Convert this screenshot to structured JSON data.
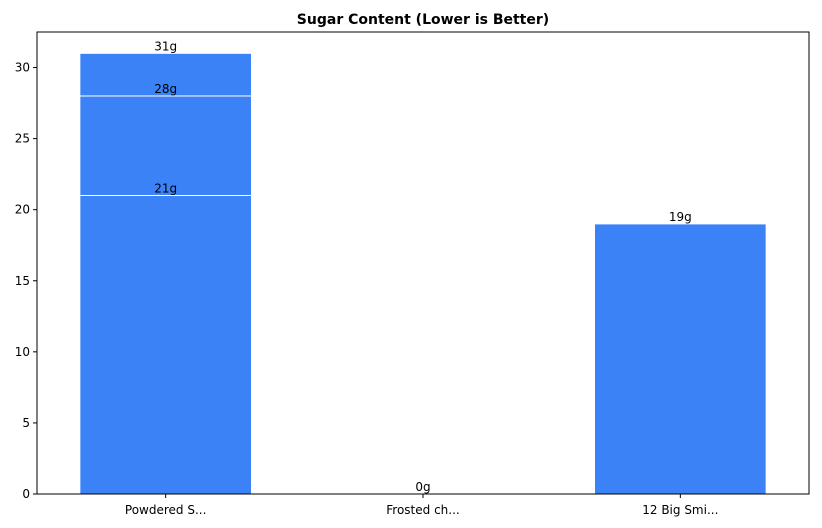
{
  "chart_data": {
    "type": "bar",
    "title": "Sugar Content (Lower is Better)",
    "xlabel": "",
    "ylabel": "",
    "categories": [
      "Powdered S...",
      "Frosted ch...",
      "12 Big Smi..."
    ],
    "stacked": true,
    "bars": [
      {
        "category": "Powdered S...",
        "segments": [
          {
            "value": 21,
            "label": "21g"
          },
          {
            "value": 7,
            "label": "28g"
          },
          {
            "value": 3,
            "label": "31g"
          }
        ]
      },
      {
        "category": "Frosted ch...",
        "segments": [
          {
            "value": 0,
            "label": "0g"
          }
        ]
      },
      {
        "category": "12 Big Smi...",
        "segments": [
          {
            "value": 19,
            "label": "19g"
          }
        ]
      }
    ],
    "ylim": [
      0,
      32.5
    ],
    "yticks": [
      0,
      5,
      10,
      15,
      20,
      25,
      30
    ],
    "grid": false,
    "bar_color": "#3b82f6",
    "edge_color": "#ffffff"
  }
}
